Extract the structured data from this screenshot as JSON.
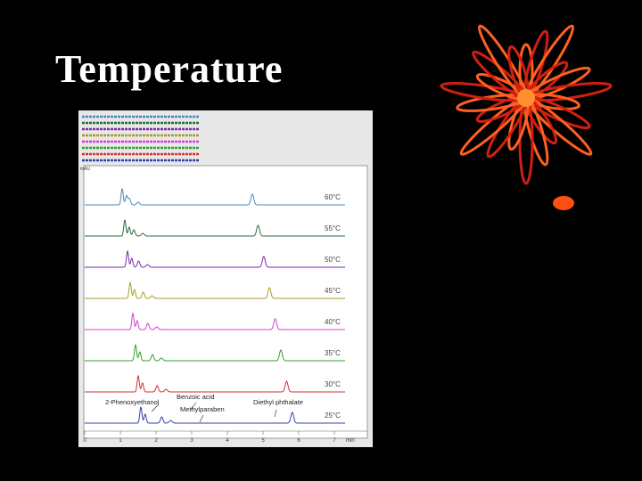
{
  "title": "Temperature",
  "figure": {
    "traces": [
      {
        "label": "60°C",
        "color": "#4a8ab8"
      },
      {
        "label": "55°C",
        "color": "#2c6a3c"
      },
      {
        "label": "50°C",
        "color": "#7a2aa8"
      },
      {
        "label": "45°C",
        "color": "#a89c20"
      },
      {
        "label": "40°C",
        "color": "#d040d0"
      },
      {
        "label": "35°C",
        "color": "#30a030"
      },
      {
        "label": "30°C",
        "color": "#d03030"
      },
      {
        "label": "25°C",
        "color": "#3040a8"
      }
    ],
    "peak_labels": [
      "2-Phenoxyethanol",
      "Benzoic acid",
      "Methylparaben",
      "Diethyl phthalate"
    ],
    "x_ticks": [
      "0",
      "1",
      "2",
      "3",
      "4",
      "5",
      "6",
      "7"
    ],
    "x_unit": "min",
    "y_unit": "mAU"
  }
}
